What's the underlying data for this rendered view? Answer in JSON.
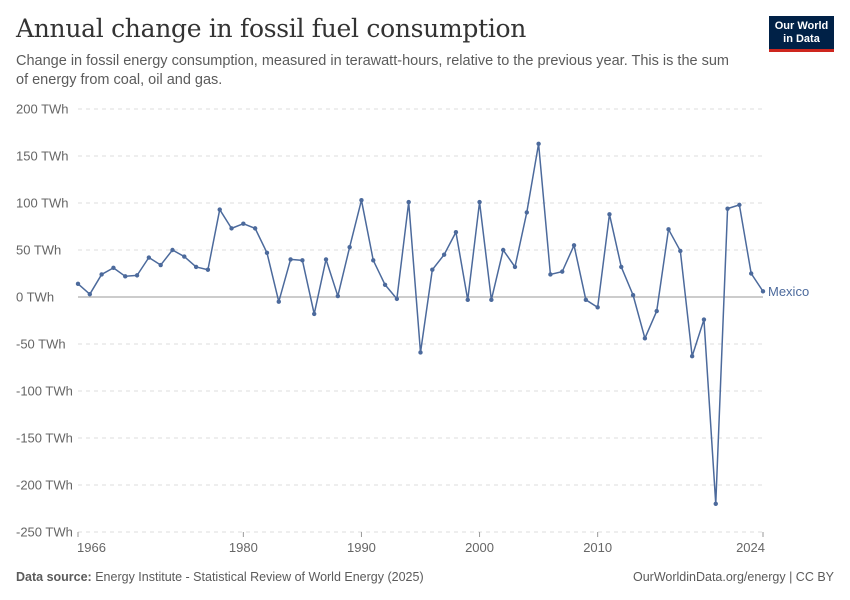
{
  "header": {
    "title": "Annual change in fossil fuel consumption",
    "subtitle": "Change in fossil energy consumption, measured in terawatt-hours, relative to the previous year. This is the sum of energy from coal, oil and gas."
  },
  "logo": {
    "line1": "Our World",
    "line2": "in Data"
  },
  "footer": {
    "source_label": "Data source:",
    "source_text": "Energy Institute - Statistical Review of World Energy (2025)",
    "right_text": "OurWorldinData.org/energy | CC BY"
  },
  "colors": {
    "series": "#4c6a9c",
    "grid": "#dddddd",
    "zero": "#999999",
    "axis_text": "#666666"
  },
  "chart_data": {
    "type": "line",
    "title": "Annual change in fossil fuel consumption",
    "unit": "TWh",
    "xlim": [
      1966,
      2024
    ],
    "ylim": [
      -250,
      200
    ],
    "yticks": [
      200,
      150,
      100,
      50,
      0,
      -50,
      -100,
      -150,
      -200,
      -250
    ],
    "ytick_labels": [
      "200 TWh",
      "150 TWh",
      "100 TWh",
      "50 TWh",
      "0 TWh",
      "-50 TWh",
      "-100 TWh",
      "-150 TWh",
      "-200 TWh",
      "-250 TWh"
    ],
    "xticks": [
      1966,
      1980,
      1990,
      2000,
      2010,
      2024
    ],
    "xtick_labels": [
      "1966",
      "1980",
      "1990",
      "2000",
      "2010",
      "2024"
    ],
    "grid": "horizontal dashed",
    "series": [
      {
        "name": "Mexico",
        "x": [
          1966,
          1967,
          1968,
          1969,
          1970,
          1971,
          1972,
          1973,
          1974,
          1975,
          1976,
          1977,
          1978,
          1979,
          1980,
          1981,
          1982,
          1983,
          1984,
          1985,
          1986,
          1987,
          1988,
          1989,
          1990,
          1991,
          1992,
          1993,
          1994,
          1995,
          1996,
          1997,
          1998,
          1999,
          2000,
          2001,
          2002,
          2003,
          2004,
          2005,
          2006,
          2007,
          2008,
          2009,
          2010,
          2011,
          2012,
          2013,
          2014,
          2015,
          2016,
          2017,
          2018,
          2019,
          2020,
          2021,
          2022,
          2023,
          2024
        ],
        "y": [
          14,
          3,
          24,
          31,
          22,
          23,
          42,
          34,
          50,
          43,
          32,
          29,
          93,
          73,
          78,
          73,
          47,
          -5,
          40,
          39,
          -18,
          40,
          1,
          53,
          103,
          39,
          13,
          -2,
          101,
          -59,
          29,
          45,
          69,
          -3,
          101,
          -3,
          50,
          32,
          90,
          163,
          24,
          27,
          55,
          -3,
          -11,
          88,
          32,
          2,
          -44,
          -15,
          72,
          49,
          -63,
          -24,
          -220,
          94,
          98,
          25,
          6
        ]
      }
    ]
  }
}
